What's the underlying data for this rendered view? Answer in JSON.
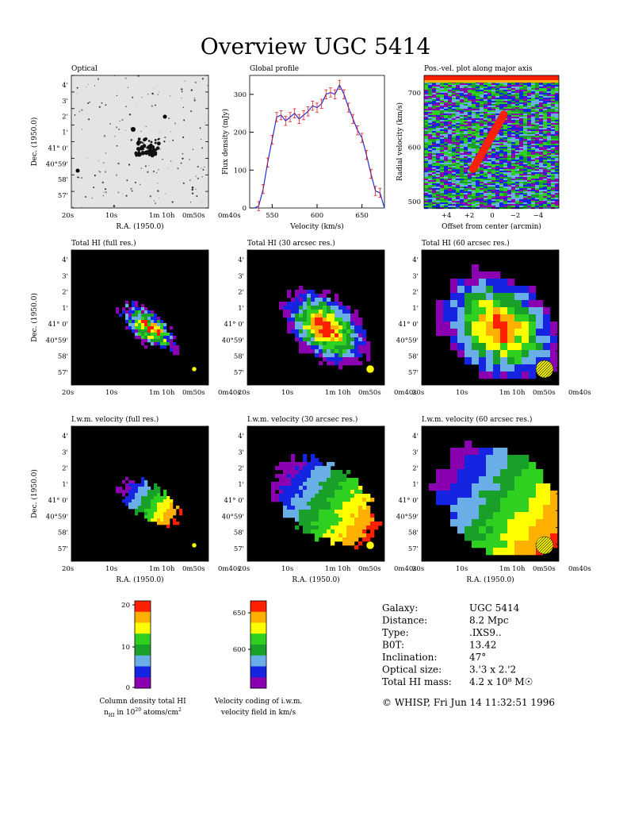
{
  "title": "Overview UGC 5414",
  "panels": {
    "optical": "Optical",
    "profile": "Global profile",
    "pv": "Pos.-vel. plot along major axis",
    "hi_full": "Total HI (full res.)",
    "hi_30": "Total HI (30 arcsec res.)",
    "hi_60": "Total HI (60 arcsec res.)",
    "vel_full": "I.w.m. velocity (full res.)",
    "vel_30": "I.w.m. velocity (30 arcsec res.)",
    "vel_60": "I.w.m. velocity (60 arcsec res.)"
  },
  "axes": {
    "dec": "Dec. (1950.0)",
    "ra": "R.A. (1950.0)",
    "flux": "Flux density (mJy)",
    "velocity": "Velocity (km/s)",
    "radial_velocity": "Radial velocity (km/s)",
    "offset": "Offset from center (arcmin)",
    "dec_ticks": [
      "4'",
      "3'",
      "2'",
      "1'",
      "41° 0'",
      "40°59'",
      "58'",
      "57'"
    ],
    "ra_ticks": [
      "20s",
      "10s",
      "1m  10h",
      "0m50s",
      "0m40s"
    ],
    "pv_x_ticks": [
      "+4",
      "+2",
      "0",
      "−2",
      "−4"
    ]
  },
  "colorbars": {
    "column": {
      "ticks": [
        "20",
        "10",
        "0"
      ],
      "caption1": "Column density total HI",
      "caption2": "n",
      "caption2_sub": "HI",
      "caption2_rest": " in 10",
      "caption2_sup": "20",
      "caption2_end": " atoms/cm",
      "caption2_sup2": "2"
    },
    "velocity": {
      "ticks": [
        "650",
        "600"
      ],
      "caption1": "Velocity coding of i.w.m.",
      "caption2": "velocity field in km/s"
    },
    "colors": [
      "#8a00b0",
      "#1424e0",
      "#6aaee8",
      "#18a028",
      "#30d020",
      "#ffff00",
      "#ffb000",
      "#ff2000"
    ]
  },
  "info": {
    "rows": [
      {
        "label": "Galaxy:",
        "value": "UGC 5414"
      },
      {
        "label": "Distance:",
        "value": "8.2 Mpc"
      },
      {
        "label": "Type:",
        "value": ".IXS9.."
      },
      {
        "label": "B0T:",
        "value": "13.42"
      },
      {
        "label": "Inclination:",
        "value": "47°"
      },
      {
        "label": "Optical size:",
        "value": "3.'3 x 2.'2"
      },
      {
        "label": "Total HI mass:",
        "value": "4.2 x 10⁸ M☉"
      }
    ],
    "footer": "© WHISP, Fri Jun 14 11:32:51 1996"
  },
  "chart_data": [
    {
      "type": "line",
      "title": "Global profile",
      "xlabel": "Velocity (km/s)",
      "ylabel": "Flux density (mJy)",
      "xlim": [
        525,
        675
      ],
      "ylim": [
        0,
        350
      ],
      "x_ticks": [
        550,
        600,
        650
      ],
      "y_ticks": [
        0,
        100,
        200,
        300
      ],
      "x": [
        530,
        535,
        540,
        545,
        550,
        555,
        560,
        565,
        570,
        575,
        580,
        585,
        590,
        595,
        600,
        605,
        610,
        615,
        620,
        625,
        630,
        635,
        640,
        645,
        650,
        655,
        660,
        665,
        670,
        675
      ],
      "y": [
        0,
        5,
        50,
        120,
        180,
        240,
        245,
        230,
        240,
        250,
        235,
        245,
        255,
        270,
        265,
        275,
        300,
        305,
        300,
        325,
        300,
        265,
        235,
        205,
        185,
        140,
        90,
        45,
        40,
        0
      ],
      "color": "#2030e0",
      "error_color": "#e02020"
    },
    {
      "type": "heatmap",
      "title": "Pos.-vel. plot along major axis",
      "xlabel": "Offset from center (arcmin)",
      "ylabel": "Radial velocity (km/s)",
      "y_ticks": [
        500,
        600,
        700
      ],
      "x_ticks": [
        "+4",
        "+2",
        "0",
        "−2",
        "−4"
      ],
      "emission_from": {
        "offset": 1.5,
        "velocity": 560
      },
      "emission_to": {
        "offset": -1.0,
        "velocity": 660
      }
    }
  ]
}
